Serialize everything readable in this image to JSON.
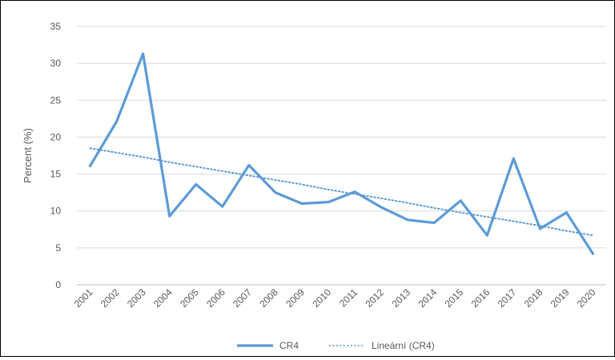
{
  "chart_data": {
    "type": "line",
    "title": "",
    "xlabel": "",
    "ylabel": "Percent (%)",
    "x": [
      "2001",
      "2002",
      "2003",
      "2004",
      "2005",
      "2006",
      "2007",
      "2008",
      "2009",
      "2010",
      "2011",
      "2012",
      "2013",
      "2014",
      "2015",
      "2016",
      "2017",
      "2018",
      "2019",
      "2020"
    ],
    "ylim": [
      0,
      35
    ],
    "yticks": [
      "0",
      "5",
      "10",
      "15",
      "20",
      "25",
      "30",
      "35"
    ],
    "grid": true,
    "legend_position": "bottom",
    "series": [
      {
        "name": "CR4",
        "style": "solid",
        "color": "#5B9BD5",
        "values": [
          16.1,
          22.1,
          31.3,
          9.3,
          13.6,
          10.6,
          16.2,
          12.5,
          11.0,
          11.2,
          12.6,
          10.5,
          8.8,
          8.4,
          11.4,
          6.7,
          17.1,
          7.6,
          9.8,
          4.2
        ]
      },
      {
        "name": "Lineární (CR4)",
        "style": "dotted",
        "color": "#5B9BD5",
        "values": [
          18.5,
          17.9,
          17.3,
          16.6,
          16.0,
          15.4,
          14.8,
          14.2,
          13.6,
          12.9,
          12.3,
          11.7,
          11.1,
          10.4,
          9.8,
          9.2,
          8.6,
          8.0,
          7.3,
          6.7
        ]
      }
    ]
  }
}
